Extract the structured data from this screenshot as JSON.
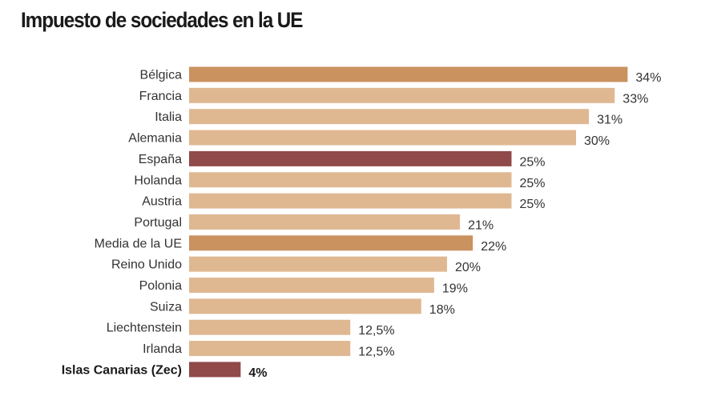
{
  "chart_data": {
    "type": "bar",
    "orientation": "horizontal",
    "title": "Impuesto de sociedades en la UE",
    "xlabel": "",
    "ylabel": "",
    "xlim": [
      0,
      35
    ],
    "grid": false,
    "categories": [
      "Bélgica",
      "Francia",
      "Italia",
      "Alemania",
      "España",
      "Holanda",
      "Austria",
      "Portugal",
      "Media de la UE",
      "Reino Unido",
      "Polonia",
      "Suiza",
      "Liechtenstein",
      "Irlanda",
      "Islas Canarias (Zec)"
    ],
    "values": [
      34,
      33,
      31,
      30,
      25,
      25,
      25,
      21,
      22,
      20,
      19,
      18,
      12.5,
      12.5,
      4
    ],
    "value_labels": [
      "34%",
      "33%",
      "31%",
      "30%",
      "25%",
      "25%",
      "25%",
      "21%",
      "22%",
      "20%",
      "19%",
      "18%",
      "12,5%",
      "12,5%",
      "4%"
    ],
    "highlight": [
      "mid",
      "light",
      "light",
      "light",
      "dark",
      "light",
      "light",
      "light",
      "mid",
      "light",
      "light",
      "light",
      "light",
      "light",
      "dark"
    ],
    "bold": [
      false,
      false,
      false,
      false,
      false,
      false,
      false,
      false,
      false,
      false,
      false,
      false,
      false,
      false,
      true
    ],
    "colors": {
      "light": "#dfb892",
      "mid": "#c9925f",
      "dark": "#8f4a49"
    }
  }
}
